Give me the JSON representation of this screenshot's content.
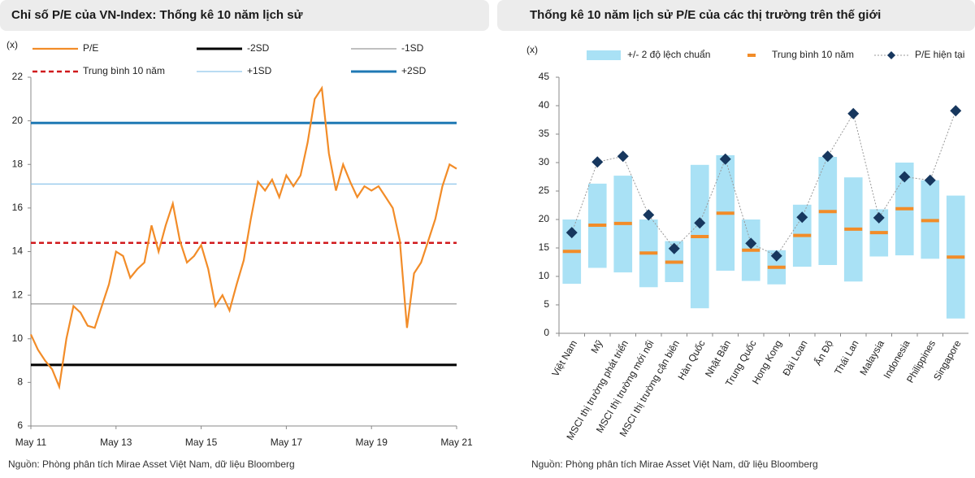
{
  "chart_data": [
    {
      "type": "line",
      "title": "Chỉ số P/E của VN-Index: Thống kê 10 năm lịch sử",
      "ylabel": "(x)",
      "source": "Nguồn: Phòng phân tích Mirae Asset Việt Nam, dữ liệu Bloomberg",
      "categories": [
        "May 11",
        null,
        null,
        null,
        null,
        null,
        null,
        null,
        null,
        null,
        null,
        null,
        "May 13",
        null,
        null,
        null,
        null,
        null,
        null,
        null,
        null,
        null,
        null,
        null,
        "May 15",
        null,
        null,
        null,
        null,
        null,
        null,
        null,
        null,
        null,
        null,
        null,
        "May 17",
        null,
        null,
        null,
        null,
        null,
        null,
        null,
        null,
        null,
        null,
        null,
        "May 19",
        null,
        null,
        null,
        null,
        null,
        null,
        null,
        null,
        null,
        null,
        null,
        "May 21"
      ],
      "series": [
        {
          "name": "P/E",
          "color": "#f28c28",
          "values": [
            10.2,
            9.5,
            9.0,
            8.6,
            7.8,
            10.0,
            11.5,
            11.2,
            10.6,
            10.5,
            11.5,
            12.5,
            14.0,
            13.8,
            12.8,
            13.2,
            13.5,
            15.2,
            14.0,
            15.2,
            16.2,
            14.5,
            13.5,
            13.8,
            14.3,
            13.2,
            11.5,
            12.0,
            11.3,
            12.5,
            13.6,
            15.5,
            17.2,
            16.8,
            17.3,
            16.5,
            17.5,
            17.0,
            17.5,
            19.0,
            21.0,
            21.5,
            18.5,
            16.8,
            18.0,
            17.2,
            16.5,
            17.0,
            16.8,
            17.0,
            16.5,
            16.0,
            14.5,
            10.5,
            13.0,
            13.5,
            14.5,
            15.5,
            17.0,
            18.0,
            17.8
          ]
        }
      ],
      "reference_lines": [
        {
          "name": "-2SD",
          "color": "#000000",
          "value": 8.8
        },
        {
          "name": "-1SD",
          "color": "#808080",
          "value": 11.6
        },
        {
          "name": "Trung bình 10 năm",
          "color": "#d0191c",
          "value": 14.4,
          "dashed": true
        },
        {
          "name": "+1SD",
          "color": "#8fc6ea",
          "value": 17.1
        },
        {
          "name": "+2SD",
          "color": "#1f78b4",
          "value": 19.9
        }
      ],
      "ylim": [
        6,
        22
      ],
      "yticks": [
        6,
        8,
        10,
        12,
        14,
        16,
        18,
        20,
        22
      ]
    },
    {
      "type": "range",
      "title": "Thống kê 10 năm lịch sử P/E của các thị trường trên thế giới",
      "ylabel": "(x)",
      "source": "Nguồn: Phòng phân tích Mirae Asset Việt Nam, dữ liệu Bloomberg",
      "categories": [
        "Việt Nam",
        "Mỹ",
        "MSCI thị trường phát triển",
        "MSCI thị trường mới nổi",
        "MSCI thị trường cận biên",
        "Hàn Quốc",
        "Nhật Bản",
        "Trung Quốc",
        "Hong Kong",
        "Đài Loan",
        "Ấn Độ",
        "Thái Lan",
        "Malaysia",
        "Indonesia",
        "Philippines",
        "Singapore"
      ],
      "range": {
        "name": "+/- 2 độ lệch chuẩn",
        "color": "#a9e1f5",
        "low": [
          8.7,
          11.5,
          10.7,
          8.1,
          9.0,
          4.4,
          11.0,
          9.2,
          8.6,
          11.7,
          12.0,
          9.1,
          13.5,
          13.7,
          13.1,
          2.6
        ],
        "high": [
          20.0,
          26.3,
          27.7,
          20.0,
          16.2,
          29.6,
          31.3,
          20.0,
          14.6,
          22.6,
          31.0,
          27.4,
          21.8,
          30.0,
          26.9,
          24.2
        ]
      },
      "series": [
        {
          "name": "Trung bình 10 năm",
          "color": "#f28c28",
          "values": [
            14.4,
            19.0,
            19.3,
            14.1,
            12.5,
            17.0,
            21.1,
            14.6,
            11.6,
            17.2,
            21.4,
            18.3,
            17.7,
            21.9,
            19.8,
            13.4
          ]
        },
        {
          "name": "P/E hiện tại",
          "color": "#17375e",
          "values": [
            17.7,
            30.1,
            31.1,
            20.8,
            14.9,
            19.4,
            30.6,
            15.8,
            13.6,
            20.4,
            31.1,
            38.6,
            20.3,
            27.5,
            26.9,
            39.1
          ]
        }
      ],
      "ylim": [
        0,
        45
      ],
      "yticks": [
        0,
        5,
        10,
        15,
        20,
        25,
        30,
        35,
        40,
        45
      ]
    }
  ]
}
